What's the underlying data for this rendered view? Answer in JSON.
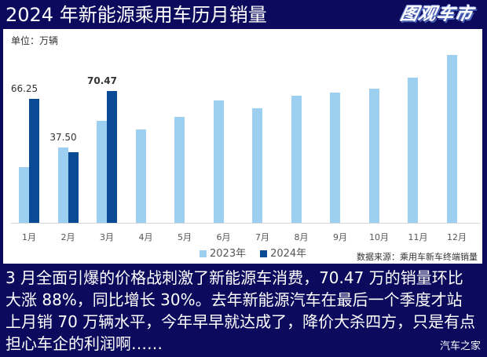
{
  "header": {
    "title": "2024 年新能源乘用车历月销量",
    "logo": "图观车市"
  },
  "chart_panel": {
    "unit": "单位：万辆",
    "source": "数据来源：乘用车新车终端销量"
  },
  "caption": "3 月全面引爆的价格战刺激了新能源车消费，70.47 万的销量环比大涨 88%，同比增长 30%。去年新能源汽车在最后一个季度才站上月销 70 万辆水平，今年早早就达成了，降价大杀四方，只是有点担心车企的利润啊……",
  "watermark": "汽车之家",
  "colors": {
    "background": "#0b0a5c",
    "series_2023": "#9dd0f0",
    "series_2024": "#0a4a94"
  },
  "chart_data": {
    "type": "bar",
    "title": "2024 年新能源乘用车历月销量",
    "ylabel": "单位：万辆",
    "xlabel": "",
    "categories": [
      "1月",
      "2月",
      "3月",
      "4月",
      "5月",
      "6月",
      "7月",
      "8月",
      "9月",
      "10月",
      "11月",
      "12月"
    ],
    "series": [
      {
        "name": "2023年",
        "values": [
          29.6,
          40.1,
          54.3,
          49.6,
          56.6,
          65.4,
          60.9,
          67.8,
          69.6,
          71.6,
          77.3,
          89.7
        ]
      },
      {
        "name": "2024年",
        "values": [
          66.25,
          37.5,
          70.47,
          null,
          null,
          null,
          null,
          null,
          null,
          null,
          null,
          null
        ]
      }
    ],
    "data_labels": {
      "2024年": [
        "66.25",
        "37.50",
        "70.47"
      ]
    },
    "ylim": [
      0,
      95
    ],
    "grid": false,
    "legend_position": "bottom",
    "annotation": "数据来源：乘用车新车终端销量"
  }
}
